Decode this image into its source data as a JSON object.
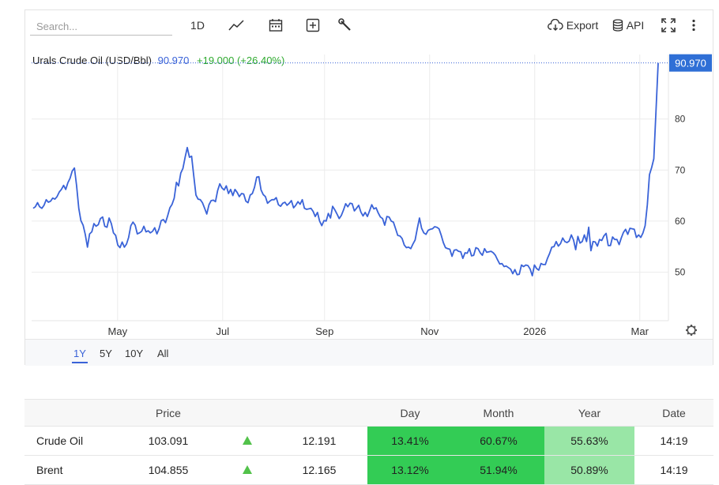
{
  "toolbar": {
    "search_placeholder": "Search...",
    "interval_label": "1D",
    "export_label": "Export",
    "api_label": "API",
    "icons": [
      "line-chart-icon",
      "calendar-icon",
      "add-box-icon",
      "wrench-icon",
      "cloud-download-icon",
      "database-icon",
      "fullscreen-icon",
      "more-vertical-icon"
    ]
  },
  "legend": {
    "name": "Urals Crude Oil (USD/Bbl)",
    "last": "90.970",
    "change": "+19.000 (+26.40%)"
  },
  "chart_data": {
    "type": "line",
    "title": "Urals Crude Oil (USD/Bbl)",
    "x_tick_labels": [
      "May",
      "Jul",
      "Sep",
      "Nov",
      "2026",
      "Mar"
    ],
    "y_tick_labels": [
      "50",
      "60",
      "70",
      "80"
    ],
    "ylim": [
      40.5,
      92
    ],
    "last_value_label": "90.970",
    "grid": true,
    "series": [
      {
        "values": [
          62.5,
          62.8,
          63.6,
          62.8,
          62.5,
          63.1,
          64.2,
          63.7,
          63.9,
          64.5,
          64.3,
          64.8,
          65.7,
          66.2,
          67.0,
          66.2,
          67.5,
          68.4,
          69.8,
          70.4,
          67.0,
          62.5,
          60.1,
          59.2,
          57.4,
          54.9,
          57.5,
          57.9,
          59.5,
          59.0,
          59.3,
          60.5,
          60.8,
          59.0,
          58.8,
          60.6,
          59.5,
          57.7,
          57.2,
          55.3,
          54.8,
          55.9,
          54.9,
          55.5,
          56.8,
          59.1,
          59.8,
          59.2,
          57.5,
          57.7,
          58.0,
          59.0,
          57.9,
          58.1,
          57.7,
          58.0,
          58.7,
          57.5,
          58.5,
          60.1,
          60.3,
          59.7,
          61.1,
          62.6,
          63.3,
          64.5,
          67.6,
          66.9,
          69.4,
          70.3,
          72.5,
          74.4,
          72.5,
          72.7,
          68.9,
          65.1,
          64.3,
          64.2,
          63.6,
          62.5,
          61.4,
          63.2,
          64.0,
          64.1,
          63.8,
          66.0,
          67.3,
          66.5,
          66.1,
          66.9,
          65.4,
          66.2,
          65.0,
          66.2,
          65.6,
          64.8,
          65.4,
          65.3,
          63.9,
          63.6,
          65.1,
          65.4,
          66.6,
          68.6,
          68.7,
          66.1,
          65.2,
          64.8,
          63.5,
          63.9,
          64.2,
          64.2,
          64.6,
          63.2,
          62.9,
          63.5,
          63.7,
          63.1,
          63.5,
          64.0,
          62.6,
          63.1,
          63.8,
          63.3,
          64.2,
          62.5,
          62.3,
          62.4,
          62.5,
          61.9,
          60.9,
          61.7,
          60.0,
          59.1,
          60.1,
          60.0,
          61.5,
          60.6,
          62.9,
          62.2,
          61.4,
          60.5,
          61.1,
          62.2,
          63.4,
          62.8,
          63.5,
          63.4,
          62.0,
          62.5,
          63.1,
          61.8,
          61.0,
          61.7,
          60.9,
          62.0,
          63.2,
          62.4,
          62.6,
          61.6,
          60.8,
          60.5,
          59.2,
          60.9,
          60.8,
          60.0,
          59.8,
          58.5,
          57.2,
          57.1,
          56.6,
          55.3,
          54.8,
          54.9,
          54.6,
          55.5,
          56.3,
          58.5,
          60.6,
          58.6,
          57.7,
          57.4,
          58.2,
          58.4,
          58.5,
          58.9,
          58.8,
          58.5,
          57.3,
          55.8,
          54.8,
          54.6,
          54.5,
          53.1,
          54.3,
          54.4,
          54.1,
          54.0,
          52.7,
          53.8,
          53.7,
          54.6,
          53.2,
          53.3,
          54.8,
          54.6,
          53.8,
          53.3,
          54.6,
          53.9,
          54.0,
          54.1,
          53.8,
          53.3,
          52.4,
          51.6,
          51.7,
          51.1,
          51.2,
          50.9,
          50.6,
          49.7,
          50.5,
          49.5,
          49.6,
          51.4,
          51.1,
          51.4,
          51.3,
          50.6,
          49.3,
          51.4,
          50.7,
          50.4,
          51.7,
          51.5,
          51.5,
          52.7,
          53.7,
          54.9,
          55.0,
          56.0,
          55.1,
          55.6,
          56.7,
          56.0,
          55.8,
          56.1,
          57.3,
          56.3,
          54.4,
          57.0,
          55.7,
          56.0,
          57.3,
          56.0,
          58.8,
          54.2,
          56.0,
          55.9,
          55.1,
          56.4,
          56.2,
          57.1,
          57.6,
          55.2,
          55.2,
          56.9,
          56.4,
          56.4,
          55.4,
          56.7,
          57.8,
          58.4,
          57.4,
          58.6,
          58.5,
          58.4,
          56.8,
          57.3,
          56.8,
          57.7,
          59.1,
          63.2,
          69.1,
          70.5,
          72.2,
          81.7,
          90.97
        ]
      }
    ]
  },
  "settings_icon": "gear-icon",
  "ranges": [
    {
      "label": "1Y",
      "active": true
    },
    {
      "label": "5Y",
      "active": false
    },
    {
      "label": "10Y",
      "active": false
    },
    {
      "label": "All",
      "active": false
    }
  ],
  "table": {
    "headers": [
      "",
      "Price",
      "",
      "",
      "Day",
      "Month",
      "Year",
      "Date"
    ],
    "rows": [
      {
        "name": "Crude Oil",
        "price": "103.091",
        "direction": "up",
        "change": "12.191",
        "day": "13.41%",
        "month": "60.67%",
        "year": "55.63%",
        "date": "14:19"
      },
      {
        "name": "Brent",
        "price": "104.855",
        "direction": "up",
        "change": "12.165",
        "day": "13.12%",
        "month": "51.94%",
        "year": "50.89%",
        "date": "14:19"
      }
    ],
    "colors": {
      "up_arrow": "#52c24a",
      "strong_green": "#33cc55",
      "light_green": "#99e6a6"
    }
  }
}
